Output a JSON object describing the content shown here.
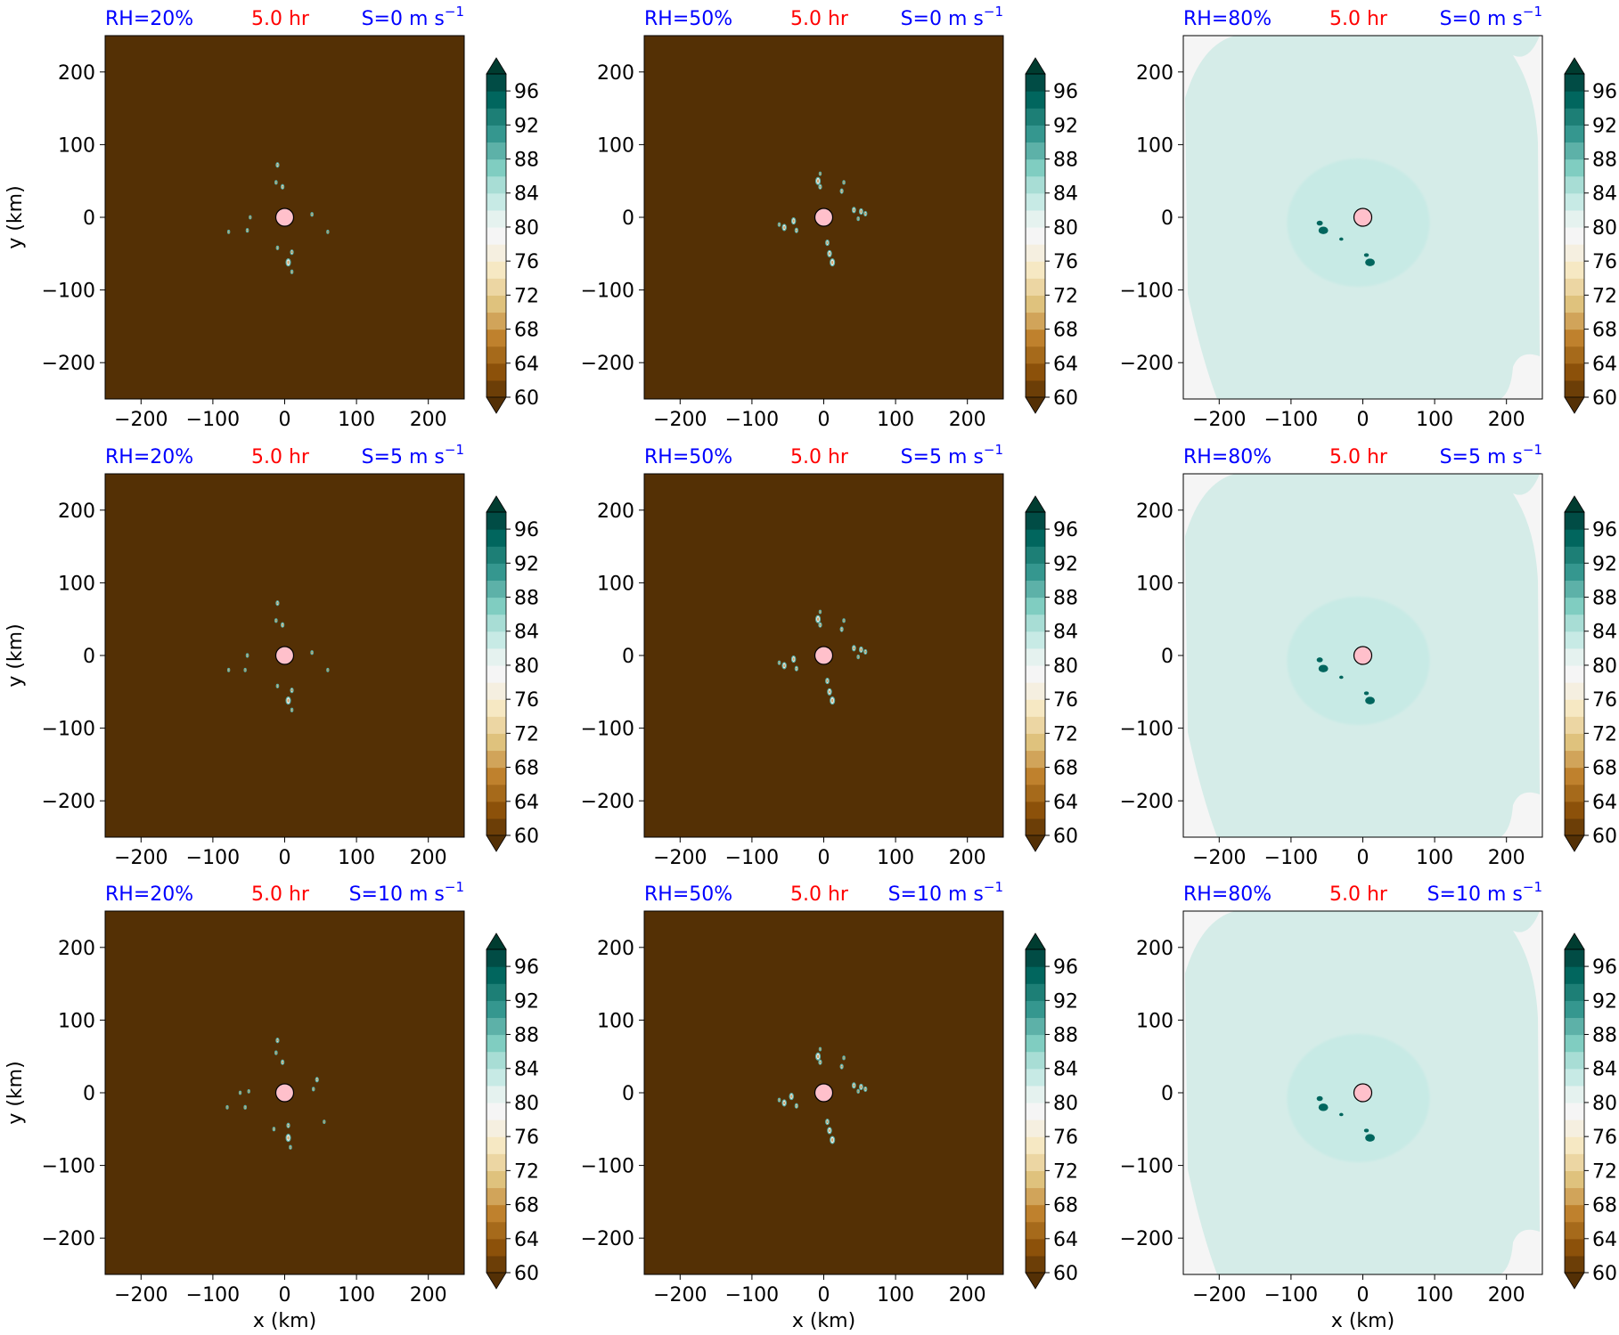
{
  "figure": {
    "row_labels": [
      "S=0 m s",
      "S=5 m s",
      "S=10 m s"
    ],
    "wind_shear_values": [
      "S=0 m s",
      "S=5 m s",
      "S=10 m s"
    ],
    "unit_exponent": "−1",
    "column_labels": [
      "RH=20%",
      "RH=50%",
      "RH=80%"
    ],
    "time_label": "5.0 hr",
    "colors": {
      "label_blue": "#0000ff",
      "time_red": "#ff0000",
      "dry_background": "#543005",
      "moist_background": "#d5ece8",
      "core_moist": "#c7eae5",
      "edge_light": "#f5f5f5",
      "storm_center": "#ffc0cb"
    }
  },
  "chart_data": {
    "type": "heatmap",
    "description": "3x3 grid of relative humidity contour maps (%) at 5.0 hr for initial RH and vertical wind shear S",
    "xlabel": "x (km)",
    "ylabel": "y (km)",
    "xlim": [
      -250,
      250
    ],
    "ylim": [
      -250,
      250
    ],
    "xticks": [
      -200,
      -100,
      0,
      100,
      200
    ],
    "yticks": [
      -200,
      -100,
      0,
      100,
      200
    ],
    "xtick_labels": [
      "−200",
      "−100",
      "0",
      "100",
      "200"
    ],
    "ytick_labels": [
      "−200",
      "−100",
      "0",
      "100",
      "200"
    ],
    "colorbar": {
      "levels": [
        58,
        60,
        62,
        64,
        66,
        68,
        70,
        72,
        74,
        76,
        78,
        80,
        82,
        84,
        86,
        88,
        90,
        92,
        94,
        96,
        98
      ],
      "tick_values": [
        60,
        64,
        68,
        72,
        76,
        80,
        84,
        88,
        92,
        96
      ],
      "tick_labels": [
        "60",
        "64",
        "68",
        "72",
        "76",
        "80",
        "84",
        "88",
        "92",
        "96"
      ],
      "extend": "both",
      "colors": [
        "#543005",
        "#6c3e07",
        "#8c510a",
        "#a66a1b",
        "#bf812d",
        "#d1a45a",
        "#dfc27d",
        "#ecd6a3",
        "#f6e8c3",
        "#f5efe0",
        "#f5f5f5",
        "#e5f2ef",
        "#c7eae5",
        "#a8ddd5",
        "#80cdc1",
        "#5db1a8",
        "#35978f",
        "#1d7f76",
        "#01665e",
        "#014c45",
        "#003c30"
      ]
    },
    "panels": [
      {
        "row": 0,
        "col": 0,
        "rh": "RH=20%",
        "shear": "S=0 m s",
        "background_rh": 58,
        "features": [
          [
            -10,
            72,
            5
          ],
          [
            -12,
            48,
            4
          ],
          [
            -3,
            42,
            5
          ],
          [
            38,
            4,
            4
          ],
          [
            -52,
            -18,
            4
          ],
          [
            -48,
            0,
            3
          ],
          [
            -10,
            -42,
            4
          ],
          [
            10,
            -48,
            5
          ],
          [
            5,
            -62,
            8
          ],
          [
            10,
            -75,
            4
          ],
          [
            60,
            -20,
            3
          ],
          [
            -78,
            -20,
            2
          ]
        ]
      },
      {
        "row": 0,
        "col": 1,
        "rh": "RH=50%",
        "shear": "S=0 m s",
        "background_rh": 58,
        "features": [
          [
            -55,
            -14,
            7
          ],
          [
            -42,
            -5,
            7
          ],
          [
            -38,
            -18,
            5
          ],
          [
            -62,
            -10,
            4
          ],
          [
            -8,
            50,
            8
          ],
          [
            -5,
            42,
            5
          ],
          [
            25,
            36,
            5
          ],
          [
            28,
            48,
            4
          ],
          [
            42,
            10,
            6
          ],
          [
            52,
            8,
            6
          ],
          [
            58,
            5,
            5
          ],
          [
            48,
            -2,
            4
          ],
          [
            5,
            -35,
            6
          ],
          [
            8,
            -50,
            7
          ],
          [
            12,
            -62,
            8
          ],
          [
            -5,
            60,
            3
          ]
        ]
      },
      {
        "row": 0,
        "col": 2,
        "rh": "RH=80%",
        "shear": "S=0 m s",
        "background_rh": 81,
        "features": [
          [
            -55,
            -18,
            14
          ],
          [
            -60,
            -8,
            9
          ],
          [
            10,
            -62,
            14
          ],
          [
            5,
            -52,
            7
          ],
          [
            -30,
            -30,
            6
          ]
        ]
      },
      {
        "row": 1,
        "col": 0,
        "rh": "RH=20%",
        "shear": "S=5 m s",
        "background_rh": 58,
        "features": [
          [
            -10,
            72,
            5
          ],
          [
            -12,
            48,
            4
          ],
          [
            -3,
            42,
            5
          ],
          [
            38,
            4,
            4
          ],
          [
            -52,
            0,
            4
          ],
          [
            -55,
            -20,
            3
          ],
          [
            -10,
            -42,
            4
          ],
          [
            10,
            -48,
            5
          ],
          [
            5,
            -62,
            8
          ],
          [
            10,
            -75,
            4
          ],
          [
            60,
            -20,
            3
          ],
          [
            -78,
            -20,
            2
          ]
        ]
      },
      {
        "row": 1,
        "col": 1,
        "rh": "RH=50%",
        "shear": "S=5 m s",
        "background_rh": 58,
        "features": [
          [
            -55,
            -14,
            7
          ],
          [
            -42,
            -5,
            7
          ],
          [
            -38,
            -18,
            5
          ],
          [
            -62,
            -10,
            4
          ],
          [
            -8,
            50,
            8
          ],
          [
            -5,
            42,
            5
          ],
          [
            25,
            36,
            5
          ],
          [
            28,
            48,
            4
          ],
          [
            42,
            10,
            6
          ],
          [
            52,
            8,
            6
          ],
          [
            58,
            5,
            5
          ],
          [
            48,
            -2,
            4
          ],
          [
            5,
            -35,
            6
          ],
          [
            8,
            -50,
            7
          ],
          [
            12,
            -62,
            8
          ],
          [
            -5,
            60,
            3
          ]
        ]
      },
      {
        "row": 1,
        "col": 2,
        "rh": "RH=80%",
        "shear": "S=5 m s",
        "background_rh": 81,
        "features": [
          [
            -55,
            -18,
            14
          ],
          [
            -60,
            -6,
            9
          ],
          [
            10,
            -62,
            14
          ],
          [
            5,
            -52,
            7
          ],
          [
            -30,
            -30,
            6
          ]
        ]
      },
      {
        "row": 2,
        "col": 0,
        "rh": "RH=20%",
        "shear": "S=10 m s",
        "background_rh": 58,
        "features": [
          [
            -10,
            72,
            5
          ],
          [
            -12,
            55,
            4
          ],
          [
            -3,
            42,
            5
          ],
          [
            45,
            18,
            5
          ],
          [
            40,
            5,
            4
          ],
          [
            -62,
            0,
            3
          ],
          [
            -55,
            -20,
            4
          ],
          [
            -50,
            2,
            3
          ],
          [
            -15,
            -50,
            4
          ],
          [
            5,
            -45,
            5
          ],
          [
            5,
            -62,
            8
          ],
          [
            8,
            -75,
            4
          ],
          [
            55,
            -40,
            3
          ],
          [
            -80,
            -20,
            2
          ]
        ]
      },
      {
        "row": 2,
        "col": 1,
        "rh": "RH=50%",
        "shear": "S=10 m s",
        "background_rh": 58,
        "features": [
          [
            -55,
            -14,
            7
          ],
          [
            -45,
            -5,
            7
          ],
          [
            -38,
            -18,
            5
          ],
          [
            -62,
            -10,
            4
          ],
          [
            -8,
            50,
            8
          ],
          [
            -5,
            42,
            5
          ],
          [
            25,
            36,
            5
          ],
          [
            28,
            48,
            4
          ],
          [
            42,
            10,
            6
          ],
          [
            52,
            8,
            6
          ],
          [
            58,
            5,
            5
          ],
          [
            48,
            2,
            4
          ],
          [
            5,
            -40,
            6
          ],
          [
            8,
            -52,
            7
          ],
          [
            12,
            -65,
            8
          ],
          [
            -5,
            60,
            3
          ]
        ]
      },
      {
        "row": 2,
        "col": 2,
        "rh": "RH=80%",
        "shear": "S=10 m s",
        "background_rh": 81,
        "features": [
          [
            -55,
            -20,
            14
          ],
          [
            -60,
            -8,
            9
          ],
          [
            10,
            -62,
            14
          ],
          [
            5,
            -52,
            7
          ],
          [
            -30,
            -30,
            6
          ]
        ]
      }
    ]
  }
}
